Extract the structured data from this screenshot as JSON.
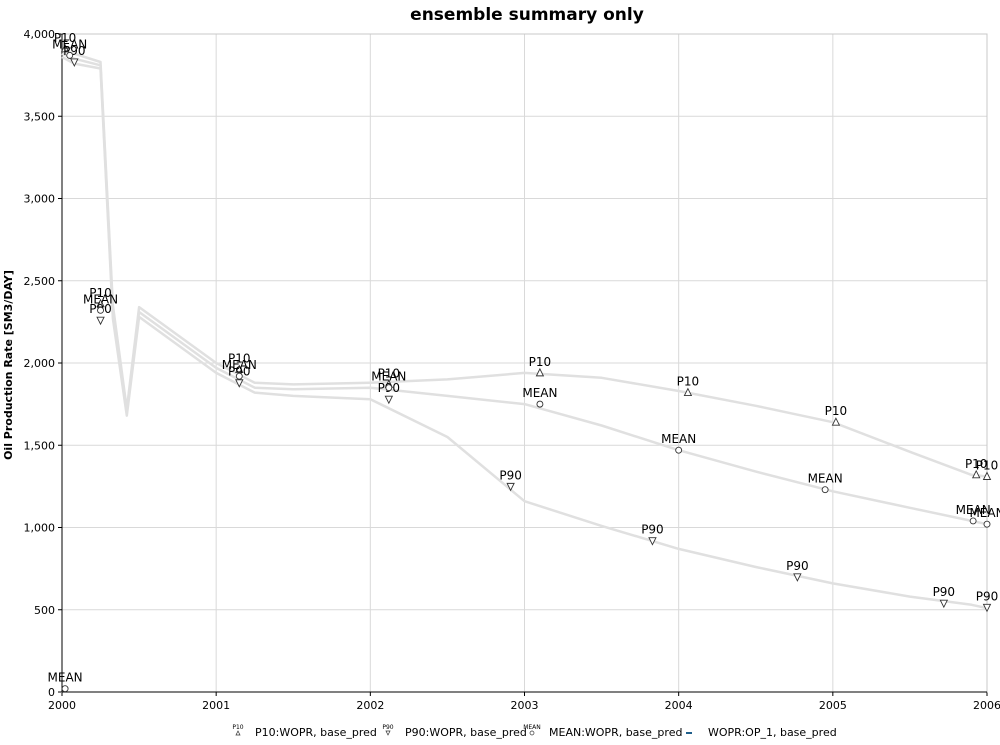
{
  "chart_data": {
    "type": "line",
    "title": "ensemble summary only",
    "xlabel": "",
    "ylabel": "Oil Production Rate [SM3/DAY]",
    "x_ticks": [
      "2000",
      "2001",
      "2002",
      "2003",
      "2004",
      "2005",
      "2006"
    ],
    "y_ticks": [
      "0",
      "500",
      "1,000",
      "1,500",
      "2,000",
      "2,500",
      "3,000",
      "3,500",
      "4,000"
    ],
    "xlim": [
      2000.0,
      2006.0
    ],
    "ylim": [
      0,
      4000
    ],
    "grid": true,
    "legend_position": "bottom",
    "series": [
      {
        "name": "P10:WOPR, base_pred",
        "marker_label": "P10",
        "marker_shape": "triangle-up",
        "color": "#e0e0e0",
        "x": [
          2000.0,
          2000.08,
          2000.25,
          2000.33,
          2000.42,
          2000.5,
          2001.0,
          2001.25,
          2001.5,
          2002.0,
          2002.5,
          2003.0,
          2003.5,
          2004.0,
          2004.5,
          2005.0,
          2005.5,
          2005.9,
          2006.0
        ],
        "y": [
          3900,
          3880,
          3830,
          2350,
          1720,
          2340,
          2000,
          1880,
          1870,
          1880,
          1900,
          1940,
          1910,
          1830,
          1740,
          1640,
          1460,
          1320,
          1310
        ]
      },
      {
        "name": "P90:WOPR, base_pred",
        "marker_label": "P90",
        "marker_shape": "triangle-down",
        "color": "#e0e0e0",
        "x": [
          2000.0,
          2000.08,
          2000.25,
          2000.33,
          2000.42,
          2000.5,
          2001.0,
          2001.25,
          2001.5,
          2002.0,
          2002.5,
          2003.0,
          2003.5,
          2004.0,
          2004.5,
          2005.0,
          2005.5,
          2005.9,
          2006.0
        ],
        "y": [
          3860,
          3820,
          3790,
          2270,
          1680,
          2280,
          1940,
          1820,
          1800,
          1780,
          1550,
          1160,
          1010,
          870,
          760,
          660,
          580,
          530,
          510
        ]
      },
      {
        "name": "MEAN:WOPR, base_pred",
        "marker_label": "MEAN",
        "marker_shape": "circle",
        "color": "#e0e0e0",
        "x": [
          2000.0,
          2000.08,
          2000.25,
          2000.33,
          2000.42,
          2000.5,
          2001.0,
          2001.25,
          2001.5,
          2002.0,
          2002.5,
          2003.0,
          2003.5,
          2004.0,
          2004.5,
          2005.0,
          2005.5,
          2005.9,
          2006.0
        ],
        "y": [
          3880,
          3850,
          3810,
          2310,
          1700,
          2310,
          1970,
          1850,
          1840,
          1850,
          1800,
          1750,
          1620,
          1470,
          1340,
          1220,
          1120,
          1040,
          1020
        ]
      },
      {
        "name": "WOPR:OP_1, base_pred",
        "marker_label": "",
        "marker_shape": "line",
        "color": "#1f5f8b",
        "x": [],
        "y": []
      }
    ],
    "markers": [
      {
        "series": 0,
        "x": 2000.02,
        "y": 3910
      },
      {
        "series": 0,
        "x": 2000.25,
        "y": 2360
      },
      {
        "series": 0,
        "x": 2001.15,
        "y": 1960
      },
      {
        "series": 0,
        "x": 2002.12,
        "y": 1870
      },
      {
        "series": 0,
        "x": 2003.1,
        "y": 1940
      },
      {
        "series": 0,
        "x": 2004.06,
        "y": 1820
      },
      {
        "series": 0,
        "x": 2005.02,
        "y": 1640
      },
      {
        "series": 0,
        "x": 2005.93,
        "y": 1320
      },
      {
        "series": 0,
        "x": 2006.0,
        "y": 1310
      },
      {
        "series": 1,
        "x": 2000.08,
        "y": 3830
      },
      {
        "series": 1,
        "x": 2000.25,
        "y": 2260
      },
      {
        "series": 1,
        "x": 2001.15,
        "y": 1880
      },
      {
        "series": 1,
        "x": 2002.12,
        "y": 1780
      },
      {
        "series": 1,
        "x": 2002.91,
        "y": 1250
      },
      {
        "series": 1,
        "x": 2003.83,
        "y": 920
      },
      {
        "series": 1,
        "x": 2004.77,
        "y": 700
      },
      {
        "series": 1,
        "x": 2005.72,
        "y": 540
      },
      {
        "series": 1,
        "x": 2006.0,
        "y": 515
      },
      {
        "series": 2,
        "x": 2000.05,
        "y": 3870
      },
      {
        "series": 2,
        "x": 2000.25,
        "y": 2320
      },
      {
        "series": 2,
        "x": 2001.15,
        "y": 1920
      },
      {
        "series": 2,
        "x": 2002.12,
        "y": 1850
      },
      {
        "series": 2,
        "x": 2003.1,
        "y": 1750
      },
      {
        "series": 2,
        "x": 2004.0,
        "y": 1470
      },
      {
        "series": 2,
        "x": 2004.95,
        "y": 1230
      },
      {
        "series": 2,
        "x": 2005.91,
        "y": 1040
      },
      {
        "series": 2,
        "x": 2006.0,
        "y": 1020
      },
      {
        "series": 2,
        "x": 2000.02,
        "y": 20
      }
    ]
  }
}
